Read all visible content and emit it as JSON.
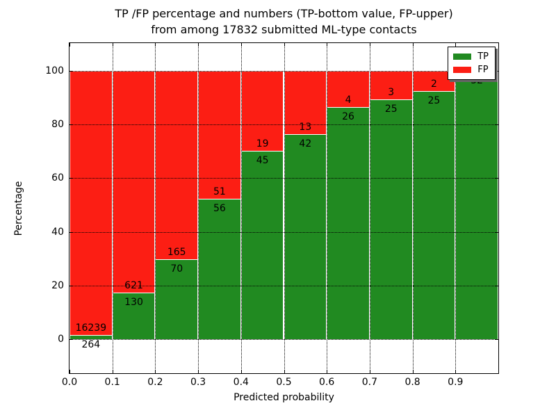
{
  "chart_data": {
    "type": "bar",
    "stacked": true,
    "normalized_to_percent": true,
    "title_lines": [
      "TP /FP percentage and numbers (TP-bottom value, FP-upper)",
      "from among 17832 submitted ML-type contacts"
    ],
    "total_submitted_contacts": 17832,
    "xlabel": "Predicted probability",
    "ylabel": "Percentage",
    "categories": [
      "0.0-0.1",
      "0.1-0.2",
      "0.2-0.3",
      "0.3-0.4",
      "0.4-0.5",
      "0.5-0.6",
      "0.6-0.7",
      "0.7-0.8",
      "0.8-0.9",
      "0.9-1.0"
    ],
    "bin_edges": [
      0.0,
      0.1,
      0.2,
      0.3,
      0.4,
      0.5,
      0.6,
      0.7,
      0.8,
      0.9,
      1.0
    ],
    "series": [
      {
        "name": "TP",
        "color": "#218a21",
        "values": [
          264,
          130,
          70,
          56,
          45,
          42,
          26,
          25,
          25,
          32
        ]
      },
      {
        "name": "FP",
        "color": "#fc1e14",
        "values": [
          16239,
          621,
          165,
          51,
          19,
          13,
          4,
          3,
          2,
          0
        ]
      }
    ],
    "bar_label_rule": "TP count printed just below the TP/FP boundary, FP count just above it; FP label omitted when FP=0",
    "x_tick_labels": [
      "0.0",
      "0.1",
      "0.2",
      "0.3",
      "0.4",
      "0.5",
      "0.6",
      "0.7",
      "0.8",
      "0.9"
    ],
    "y_tick_values": [
      0,
      20,
      40,
      60,
      80,
      100
    ],
    "xlim": [
      0,
      1
    ],
    "ylim": [
      -12.7,
      110.4
    ],
    "grid": "dotted black, horizontal every 20%, vertical every 0.1, drawn above bars",
    "legend": {
      "position": "upper right",
      "entries": [
        {
          "label": "TP",
          "color": "#218a21"
        },
        {
          "label": "FP",
          "color": "#fc1e14"
        }
      ]
    }
  }
}
